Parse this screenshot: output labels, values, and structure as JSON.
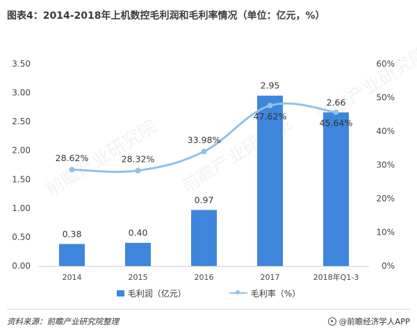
{
  "title": "图表4：2014-2018年上机数控毛利润和毛利率情况（单位：亿元，%）",
  "footer": {
    "source": "资料来源：前瞻产业研究院整理",
    "brand": "@前瞻经济学人APP"
  },
  "watermark_text": "前瞻产业研究院",
  "colors": {
    "bar": "#3d86dc",
    "line": "#8ec1ea",
    "text": "#444444"
  },
  "chart_data": {
    "type": "bar",
    "categories": [
      "2014",
      "2015",
      "2016",
      "2017",
      "2018年Q1-3"
    ],
    "series": [
      {
        "name": "毛利润（亿元）",
        "type": "bar",
        "axis": "left",
        "values": [
          0.38,
          0.4,
          0.97,
          2.95,
          2.66
        ],
        "labels": [
          "0.38",
          "0.40",
          "0.97",
          "2.95",
          "2.66"
        ]
      },
      {
        "name": "毛利率（%）",
        "type": "line",
        "axis": "right",
        "values": [
          28.62,
          28.32,
          33.98,
          47.62,
          45.64
        ],
        "labels": [
          "28.62%",
          "28.32%",
          "33.98%",
          "47.62%",
          "45.64%"
        ]
      }
    ],
    "y_left": {
      "min": 0,
      "max": 3.5,
      "ticks": [
        "0.00",
        "0.50",
        "1.00",
        "1.50",
        "2.00",
        "2.50",
        "3.00",
        "3.50"
      ]
    },
    "y_right": {
      "min": 0,
      "max": 60,
      "ticks": [
        "0%",
        "10%",
        "20%",
        "30%",
        "40%",
        "50%",
        "60%"
      ]
    },
    "grid": false,
    "legend_position": "bottom"
  }
}
